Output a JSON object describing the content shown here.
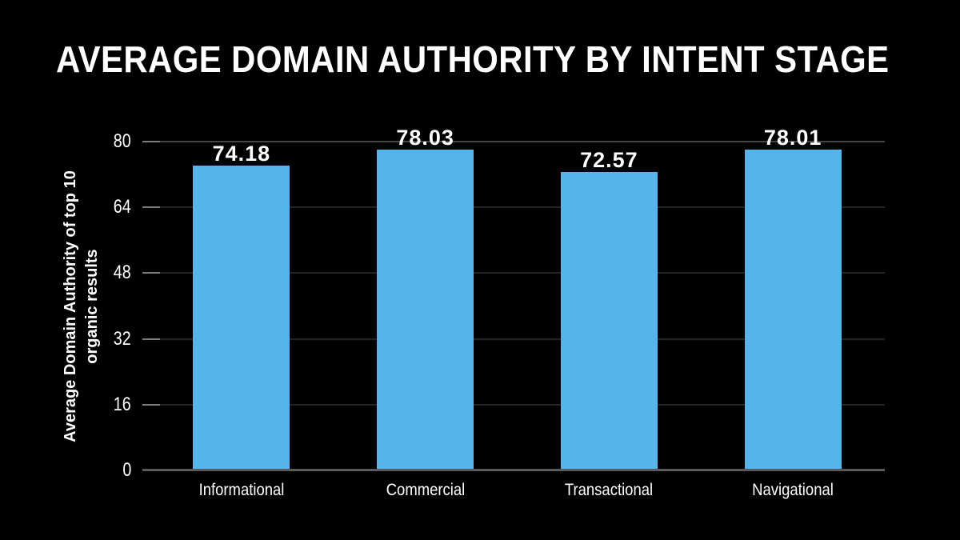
{
  "colors": {
    "background": "#000000",
    "bar": "#54B5EB",
    "text": "#FFFFFF",
    "gridline": "#242424",
    "gridline_top": "#454545",
    "axis_line": "#5A5A5A",
    "tick": "#7D7D7D"
  },
  "chart_data": {
    "type": "bar",
    "title": "AVERAGE DOMAIN AUTHORITY BY INTENT STAGE",
    "categories": [
      "Informational",
      "Commercial",
      "Transactional",
      "Navigational"
    ],
    "values": [
      74.18,
      78.03,
      72.57,
      78.01
    ],
    "value_labels": [
      "74.18",
      "78.03",
      "72.57",
      "78.01"
    ],
    "xlabel": "",
    "ylabel": "Average Domain Authority of top 10 organic results",
    "ylabel_lines": [
      "Average Domain Authority of top 10",
      "organic results"
    ],
    "yticks": [
      0,
      16,
      32,
      48,
      64,
      80
    ],
    "ylim": [
      0,
      80
    ],
    "grid": "horizontal",
    "legend": "none",
    "bar_color": "#54B5EB",
    "background": "#000000"
  }
}
